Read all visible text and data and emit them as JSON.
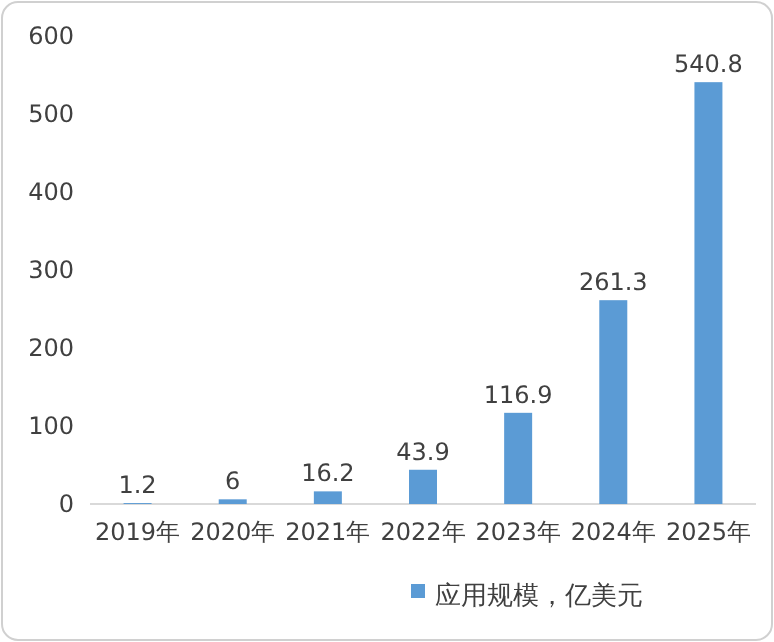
{
  "chart_data": {
    "type": "bar",
    "categories": [
      "2019年",
      "2020年",
      "2021年",
      "2022年",
      "2023年",
      "2024年",
      "2025年"
    ],
    "series": [
      {
        "name": "应用规模，亿美元",
        "color": "#5b9bd5",
        "values": [
          1.2,
          6,
          16.2,
          43.9,
          116.9,
          261.3,
          540.8
        ]
      }
    ],
    "ylim": [
      0,
      600
    ],
    "yticks": [
      0,
      100,
      200,
      300,
      400,
      500,
      600
    ],
    "data_labels": true,
    "legend": "bottom"
  }
}
